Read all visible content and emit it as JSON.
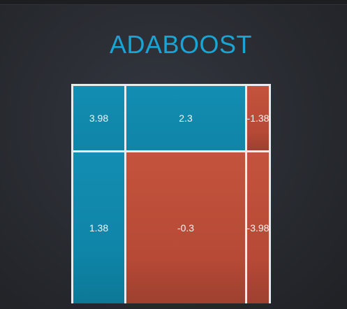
{
  "title": "ADABOOST",
  "grid": {
    "rows": [
      [
        {
          "value": "3.98",
          "sign": "positive",
          "color": "#138db2"
        },
        {
          "value": "2.3",
          "sign": "positive",
          "color": "#138db2"
        },
        {
          "value": "-1.38",
          "sign": "negative",
          "color": "#c4533c"
        }
      ],
      [
        {
          "value": "1.38",
          "sign": "positive",
          "color": "#138db2"
        },
        {
          "value": "-0.3",
          "sign": "negative",
          "color": "#c4533c"
        },
        {
          "value": "-3.98",
          "sign": "negative",
          "color": "#c4533c"
        }
      ]
    ]
  },
  "colors": {
    "title": "#18a5d6",
    "positive": "#138db2",
    "negative": "#c4533c",
    "border": "#e9ecee",
    "background": "#2a2d33"
  }
}
